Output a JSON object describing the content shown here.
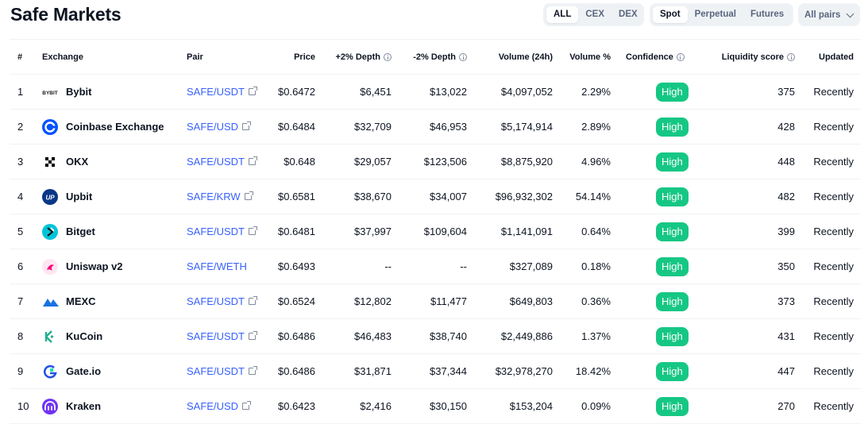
{
  "title": "Safe Markets",
  "filters": {
    "type": [
      "ALL",
      "CEX",
      "DEX"
    ],
    "type_active": 0,
    "market": [
      "Spot",
      "Perpetual",
      "Futures"
    ],
    "market_active": 0,
    "pairs_dropdown": "All pairs"
  },
  "headers": {
    "rank": "#",
    "exchange": "Exchange",
    "pair": "Pair",
    "price": "Price",
    "plus_depth": "+2% Depth",
    "minus_depth": "-2% Depth",
    "volume": "Volume (24h)",
    "volume_pct": "Volume %",
    "confidence": "Confidence",
    "liquidity": "Liquidity score",
    "updated": "Updated"
  },
  "rows": [
    {
      "rank": "1",
      "exchange": "Bybit",
      "icon": "bybit-logo-icon",
      "pair": "SAFE/USDT",
      "price": "$0.6472",
      "plus_depth": "$6,451",
      "minus_depth": "$13,022",
      "volume": "$4,097,052",
      "volume_pct": "2.29%",
      "confidence": "High",
      "liquidity": "375",
      "updated": "Recently"
    },
    {
      "rank": "2",
      "exchange": "Coinbase Exchange",
      "icon": "coinbase-logo-icon",
      "pair": "SAFE/USD",
      "price": "$0.6484",
      "plus_depth": "$32,709",
      "minus_depth": "$46,953",
      "volume": "$5,174,914",
      "volume_pct": "2.89%",
      "confidence": "High",
      "liquidity": "428",
      "updated": "Recently"
    },
    {
      "rank": "3",
      "exchange": "OKX",
      "icon": "okx-logo-icon",
      "pair": "SAFE/USDT",
      "price": "$0.648",
      "plus_depth": "$29,057",
      "minus_depth": "$123,506",
      "volume": "$8,875,920",
      "volume_pct": "4.96%",
      "confidence": "High",
      "liquidity": "448",
      "updated": "Recently"
    },
    {
      "rank": "4",
      "exchange": "Upbit",
      "icon": "upbit-logo-icon",
      "pair": "SAFE/KRW",
      "price": "$0.6581",
      "plus_depth": "$38,670",
      "minus_depth": "$34,007",
      "volume": "$96,932,302",
      "volume_pct": "54.14%",
      "confidence": "High",
      "liquidity": "482",
      "updated": "Recently"
    },
    {
      "rank": "5",
      "exchange": "Bitget",
      "icon": "bitget-logo-icon",
      "pair": "SAFE/USDT",
      "price": "$0.6481",
      "plus_depth": "$37,997",
      "minus_depth": "$109,604",
      "volume": "$1,141,091",
      "volume_pct": "0.64%",
      "confidence": "High",
      "liquidity": "399",
      "updated": "Recently"
    },
    {
      "rank": "6",
      "exchange": "Uniswap v2",
      "icon": "uniswap-logo-icon",
      "pair": "SAFE/WETH",
      "price": "$0.6493",
      "plus_depth": "--",
      "minus_depth": "--",
      "volume": "$327,089",
      "volume_pct": "0.18%",
      "confidence": "High",
      "liquidity": "350",
      "updated": "Recently"
    },
    {
      "rank": "7",
      "exchange": "MEXC",
      "icon": "mexc-logo-icon",
      "pair": "SAFE/USDT",
      "price": "$0.6524",
      "plus_depth": "$12,802",
      "minus_depth": "$11,477",
      "volume": "$649,803",
      "volume_pct": "0.36%",
      "confidence": "High",
      "liquidity": "373",
      "updated": "Recently"
    },
    {
      "rank": "8",
      "exchange": "KuCoin",
      "icon": "kucoin-logo-icon",
      "pair": "SAFE/USDT",
      "price": "$0.6486",
      "plus_depth": "$46,483",
      "minus_depth": "$38,740",
      "volume": "$2,449,886",
      "volume_pct": "1.37%",
      "confidence": "High",
      "liquidity": "431",
      "updated": "Recently"
    },
    {
      "rank": "9",
      "exchange": "Gate.io",
      "icon": "gateio-logo-icon",
      "pair": "SAFE/USDT",
      "price": "$0.6486",
      "plus_depth": "$31,871",
      "minus_depth": "$37,344",
      "volume": "$32,978,270",
      "volume_pct": "18.42%",
      "confidence": "High",
      "liquidity": "447",
      "updated": "Recently"
    },
    {
      "rank": "10",
      "exchange": "Kraken",
      "icon": "kraken-logo-icon",
      "pair": "SAFE/USD",
      "price": "$0.6423",
      "plus_depth": "$2,416",
      "minus_depth": "$30,150",
      "volume": "$153,204",
      "volume_pct": "0.09%",
      "confidence": "High",
      "liquidity": "270",
      "updated": "Recently"
    }
  ],
  "colors": {
    "confidence_high": "#16c784",
    "pair_link": "#3861fb",
    "text": "#0d1421",
    "muted": "#58667e"
  }
}
